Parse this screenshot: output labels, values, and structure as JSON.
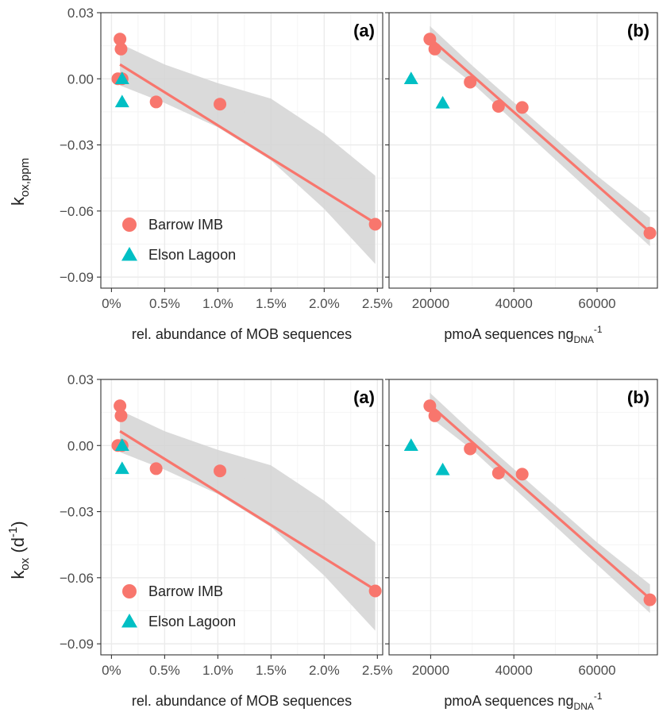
{
  "colors": {
    "barrow": "#F8766D",
    "elson": "#00BFC4",
    "band": "#D3D3D3",
    "grid_major": "#EBEBEB",
    "grid_minor": "#F4F4F4",
    "panel_border": "#333333",
    "tick_text": "#4D4D4D"
  },
  "chart_data": [
    {
      "type": "scatter",
      "panel_label": "(a)",
      "row": "top",
      "ylabel": "k",
      "ylabel_sub": "ox,ppm",
      "ylabel_sup": "",
      "xlabel": "rel. abundance of MOB sequences",
      "xlim": [
        -0.1,
        2.55
      ],
      "ylim": [
        -0.095,
        0.03
      ],
      "x_ticks": [
        0,
        0.5,
        1,
        1.5,
        2,
        2.5
      ],
      "x_tick_labels": [
        "0%",
        "0.5%",
        "1.0%",
        "1.5%",
        "2.0%",
        "2.5%"
      ],
      "y_ticks": [
        0.03,
        0.0,
        -0.03,
        -0.06,
        -0.09
      ],
      "y_tick_labels": [
        "0.03",
        "0.00",
        "−0.03",
        "−0.06",
        "−0.09"
      ],
      "grid": true,
      "legend_position": "bottom-left",
      "series": [
        {
          "name": "Barrow IMB",
          "marker": "circle",
          "points": [
            [
              0.08,
              0.018
            ],
            [
              0.09,
              0.0135
            ],
            [
              0.06,
              0.0
            ],
            [
              0.1,
              0.0
            ],
            [
              0.42,
              -0.0105
            ],
            [
              1.02,
              -0.0115
            ],
            [
              2.48,
              -0.066
            ]
          ]
        },
        {
          "name": "Elson Lagoon",
          "marker": "triangle",
          "points": [
            [
              0.1,
              0.0
            ],
            [
              0.1,
              -0.0105
            ]
          ]
        }
      ],
      "fit": {
        "x": [
          0.08,
          2.48
        ],
        "y": [
          0.0065,
          -0.0655
        ]
      },
      "band": {
        "x": [
          0.08,
          0.5,
          1.0,
          1.5,
          2.0,
          2.48
        ],
        "lower": [
          -0.003,
          -0.011,
          -0.022,
          -0.037,
          -0.059,
          -0.084
        ],
        "upper": [
          0.016,
          0.0065,
          -0.002,
          -0.009,
          -0.025,
          -0.044
        ]
      }
    },
    {
      "type": "scatter",
      "panel_label": "(b)",
      "row": "top",
      "xlabel": "pmoA sequences ng",
      "xlabel_sub": "DNA",
      "xlabel_sup": "-1",
      "xlim": [
        10000,
        74500
      ],
      "ylim": [
        -0.095,
        0.03
      ],
      "x_ticks": [
        20000,
        40000,
        60000
      ],
      "x_tick_labels": [
        "20000",
        "40000",
        "60000"
      ],
      "y_ticks": [
        0.03,
        0.0,
        -0.03,
        -0.06,
        -0.09
      ],
      "grid": true,
      "series": [
        {
          "name": "Barrow IMB",
          "marker": "circle",
          "points": [
            [
              19800,
              0.018
            ],
            [
              21000,
              0.0135
            ],
            [
              29500,
              -0.0015
            ],
            [
              36300,
              -0.0125
            ],
            [
              42000,
              -0.013
            ],
            [
              72700,
              -0.07
            ]
          ]
        },
        {
          "name": "Elson Lagoon",
          "marker": "triangle",
          "points": [
            [
              15300,
              0.0
            ],
            [
              22900,
              -0.011
            ]
          ]
        }
      ],
      "fit": {
        "x": [
          19800,
          72700
        ],
        "y": [
          0.0185,
          -0.0695
        ]
      },
      "band": {
        "x": [
          19800,
          30000,
          45000,
          60000,
          72700
        ],
        "lower": [
          0.013,
          -0.002,
          -0.028,
          -0.054,
          -0.076
        ],
        "upper": [
          0.024,
          0.006,
          -0.019,
          -0.044,
          -0.063
        ]
      }
    },
    {
      "type": "scatter",
      "panel_label": "(a)",
      "row": "bottom",
      "ylabel": "k",
      "ylabel_sub": "ox",
      "ylabel_sup": "-1",
      "ylabel_unit_prefix": " (d",
      "ylabel_unit_suffix": ")",
      "xlabel": "rel. abundance of MOB sequences",
      "xlim": [
        -0.1,
        2.55
      ],
      "ylim": [
        -0.095,
        0.03
      ],
      "x_ticks": [
        0,
        0.5,
        1,
        1.5,
        2,
        2.5
      ],
      "x_tick_labels": [
        "0%",
        "0.5%",
        "1.0%",
        "1.5%",
        "2.0%",
        "2.5%"
      ],
      "y_ticks": [
        0.03,
        0.0,
        -0.03,
        -0.06,
        -0.09
      ],
      "y_tick_labels": [
        "0.03",
        "0.00",
        "−0.03",
        "−0.06",
        "−0.09"
      ],
      "grid": true,
      "legend_position": "bottom-left",
      "series": [
        {
          "name": "Barrow IMB",
          "marker": "circle",
          "points": [
            [
              0.08,
              0.018
            ],
            [
              0.09,
              0.0135
            ],
            [
              0.06,
              0.0
            ],
            [
              0.1,
              0.0
            ],
            [
              0.42,
              -0.0105
            ],
            [
              1.02,
              -0.0115
            ],
            [
              2.48,
              -0.066
            ]
          ]
        },
        {
          "name": "Elson Lagoon",
          "marker": "triangle",
          "points": [
            [
              0.1,
              0.0
            ],
            [
              0.1,
              -0.0105
            ]
          ]
        }
      ],
      "fit": {
        "x": [
          0.08,
          2.48
        ],
        "y": [
          0.0065,
          -0.0655
        ]
      },
      "band": {
        "x": [
          0.08,
          0.5,
          1.0,
          1.5,
          2.0,
          2.48
        ],
        "lower": [
          -0.003,
          -0.011,
          -0.022,
          -0.037,
          -0.059,
          -0.084
        ],
        "upper": [
          0.016,
          0.0065,
          -0.002,
          -0.009,
          -0.025,
          -0.044
        ]
      }
    },
    {
      "type": "scatter",
      "panel_label": "(b)",
      "row": "bottom",
      "xlabel": "pmoA sequences ng",
      "xlabel_sub": "DNA",
      "xlabel_sup": "-1",
      "xlim": [
        10000,
        74500
      ],
      "ylim": [
        -0.095,
        0.03
      ],
      "x_ticks": [
        20000,
        40000,
        60000
      ],
      "x_tick_labels": [
        "20000",
        "40000",
        "60000"
      ],
      "y_ticks": [
        0.03,
        0.0,
        -0.03,
        -0.06,
        -0.09
      ],
      "grid": true,
      "series": [
        {
          "name": "Barrow IMB",
          "marker": "circle",
          "points": [
            [
              19800,
              0.018
            ],
            [
              21000,
              0.0135
            ],
            [
              29500,
              -0.0015
            ],
            [
              36300,
              -0.0125
            ],
            [
              42000,
              -0.013
            ],
            [
              72700,
              -0.07
            ]
          ]
        },
        {
          "name": "Elson Lagoon",
          "marker": "triangle",
          "points": [
            [
              15300,
              0.0
            ],
            [
              22900,
              -0.011
            ]
          ]
        }
      ],
      "fit": {
        "x": [
          19800,
          72700
        ],
        "y": [
          0.0185,
          -0.0695
        ]
      },
      "band": {
        "x": [
          19800,
          30000,
          45000,
          60000,
          72700
        ],
        "lower": [
          0.013,
          -0.002,
          -0.028,
          -0.054,
          -0.076
        ],
        "upper": [
          0.024,
          0.006,
          -0.019,
          -0.044,
          -0.063
        ]
      }
    }
  ]
}
